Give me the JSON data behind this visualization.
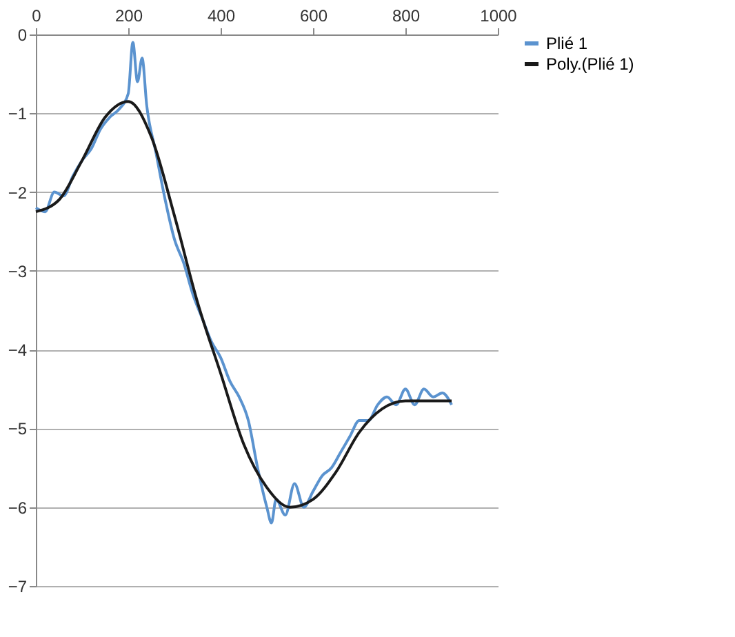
{
  "chart_data": {
    "type": "line",
    "xlim": [
      0,
      1000
    ],
    "xticks": [
      0,
      200,
      400,
      600,
      800,
      1000
    ],
    "ylim": [
      -7,
      0
    ],
    "yticks": [
      0,
      -1,
      -2,
      -3,
      -4,
      -5,
      -6,
      -7
    ],
    "grid": "y",
    "legend": "right",
    "marker": "none",
    "line_style": "solid",
    "series": [
      {
        "name": "Plié 1",
        "color": "#5b93cf",
        "x": [
          0,
          20,
          40,
          60,
          80,
          100,
          120,
          140,
          160,
          180,
          200,
          210,
          220,
          230,
          240,
          260,
          280,
          300,
          320,
          340,
          360,
          380,
          400,
          420,
          440,
          460,
          480,
          500,
          510,
          520,
          540,
          560,
          580,
          600,
          620,
          640,
          660,
          680,
          700,
          720,
          740,
          760,
          780,
          800,
          820,
          840,
          860,
          880,
          900
        ],
        "values": [
          -2.2,
          -2.25,
          -2.0,
          -2.05,
          -1.8,
          -1.6,
          -1.45,
          -1.2,
          -1.05,
          -0.95,
          -0.75,
          -0.1,
          -0.6,
          -0.3,
          -0.9,
          -1.5,
          -2.1,
          -2.6,
          -2.9,
          -3.3,
          -3.6,
          -3.9,
          -4.1,
          -4.4,
          -4.6,
          -4.9,
          -5.5,
          -6.0,
          -6.2,
          -5.9,
          -6.1,
          -5.7,
          -6.0,
          -5.8,
          -5.6,
          -5.5,
          -5.3,
          -5.1,
          -4.9,
          -4.9,
          -4.7,
          -4.6,
          -4.7,
          -4.5,
          -4.7,
          -4.5,
          -4.6,
          -4.55,
          -4.7
        ]
      },
      {
        "name": "Poly.(Plié 1)",
        "color": "#1a1a1a",
        "x": [
          0,
          50,
          100,
          150,
          200,
          250,
          300,
          350,
          400,
          450,
          500,
          550,
          600,
          650,
          700,
          750,
          800,
          850,
          900
        ],
        "values": [
          -2.25,
          -2.1,
          -1.6,
          -1.05,
          -0.85,
          -1.3,
          -2.3,
          -3.4,
          -4.3,
          -5.2,
          -5.75,
          -6.0,
          -5.9,
          -5.55,
          -5.05,
          -4.75,
          -4.65,
          -4.65,
          -4.65
        ]
      }
    ]
  }
}
